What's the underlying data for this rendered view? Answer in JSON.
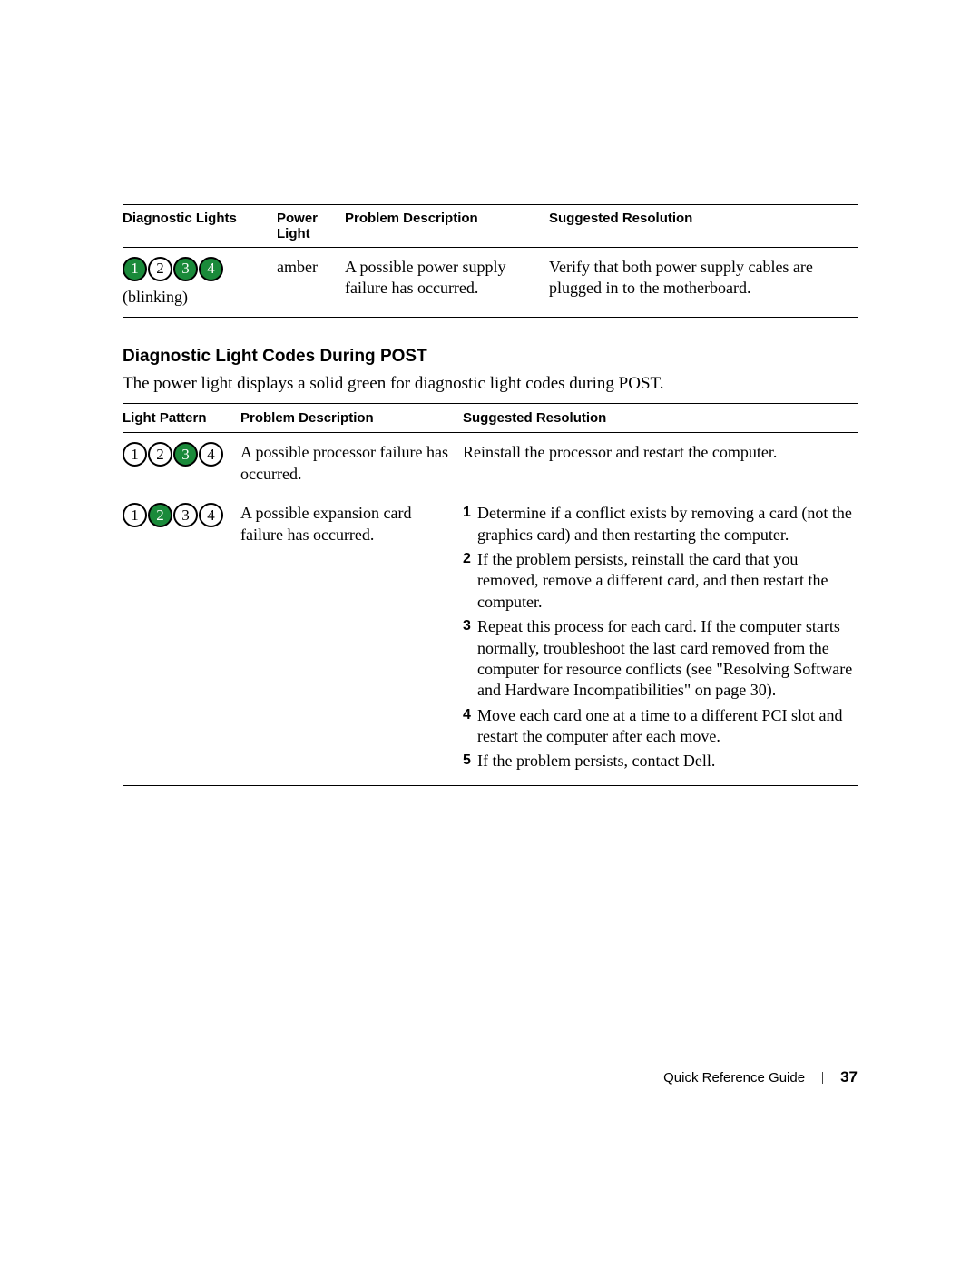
{
  "colors": {
    "lit_bg": "#1a8a3a",
    "lit_fg": "#ffffff",
    "unlit_bg": "#ffffff",
    "unlit_fg": "#000000",
    "border": "#000000",
    "page_bg": "#ffffff"
  },
  "table1": {
    "headers": {
      "c1": "Diagnostic Lights",
      "c2": "Power Light",
      "c3": "Problem Description",
      "c4": "Suggested Resolution"
    },
    "row": {
      "lights": [
        {
          "n": "1",
          "lit": true
        },
        {
          "n": "2",
          "lit": false
        },
        {
          "n": "3",
          "lit": true
        },
        {
          "n": "4",
          "lit": true
        }
      ],
      "blinking_label": "(blinking)",
      "power": "amber",
      "problem": "A possible power supply failure has occurred.",
      "resolution": "Verify that both power supply cables are plugged in to the motherboard."
    }
  },
  "section": {
    "heading": "Diagnostic Light Codes During POST",
    "intro": "The power light displays a solid green for diagnostic light codes during POST."
  },
  "table2": {
    "headers": {
      "c1": "Light Pattern",
      "c2": "Problem Description",
      "c3": "Suggested Resolution"
    },
    "rows": [
      {
        "lights": [
          {
            "n": "1",
            "lit": false
          },
          {
            "n": "2",
            "lit": false
          },
          {
            "n": "3",
            "lit": true
          },
          {
            "n": "4",
            "lit": false
          }
        ],
        "problem": "A possible processor failure has occurred.",
        "resolution_plain": "Reinstall the processor and restart the computer."
      },
      {
        "lights": [
          {
            "n": "1",
            "lit": false
          },
          {
            "n": "2",
            "lit": true
          },
          {
            "n": "3",
            "lit": false
          },
          {
            "n": "4",
            "lit": false
          }
        ],
        "problem": "A possible expansion card failure has occurred.",
        "resolution_steps": [
          "Determine if a conflict exists by removing a card (not the graphics card) and then restarting the computer.",
          "If the problem persists, reinstall the card that you removed, remove a different card, and then restart the computer.",
          "Repeat this process for each card. If the computer starts normally, troubleshoot the last card removed from the computer for resource conflicts (see \"Resolving Software and Hardware Incompatibilities\" on page 30).",
          "Move each card one at a time to a different PCI slot and restart the computer after each move.",
          "If the problem persists, contact Dell."
        ]
      }
    ]
  },
  "footer": {
    "guide": "Quick Reference Guide",
    "page": "37"
  }
}
